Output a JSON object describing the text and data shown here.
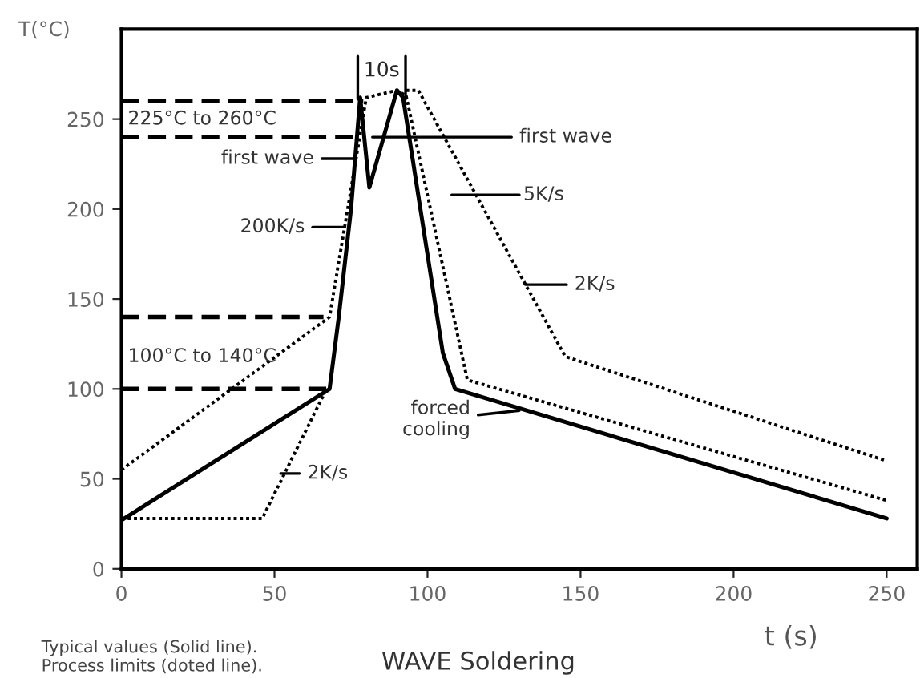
{
  "chart_data": {
    "type": "line",
    "title": "WAVE Soldering",
    "xlabel": "t (s)",
    "ylabel": "T(°C)",
    "xlim": [
      0,
      260
    ],
    "xticks": [
      0,
      50,
      100,
      150,
      200,
      250
    ],
    "ylim": [
      0,
      300
    ],
    "yticks": [
      0,
      50,
      100,
      150,
      200,
      250
    ],
    "grid": false,
    "marker": "none",
    "series": [
      {
        "color": "#000000",
        "line_style": "solid",
        "x": [
          0,
          68,
          71,
          75,
          78,
          81,
          90,
          92,
          105,
          109,
          250
        ],
        "values": [
          27,
          100,
          140,
          200,
          262,
          212,
          266,
          262,
          120,
          100,
          28
        ]
      },
      {
        "color": "#000000",
        "line_style": "dotted",
        "x": [
          0,
          46,
          67
        ],
        "values": [
          28,
          28,
          100
        ]
      },
      {
        "color": "#000000",
        "line_style": "dotted",
        "x": [
          0,
          68,
          80,
          90,
          93
        ],
        "values": [
          55,
          140,
          262,
          266,
          263
        ]
      },
      {
        "color": "#000000",
        "line_style": "dotted",
        "x": [
          93,
          113,
          250
        ],
        "values": [
          263,
          105,
          38
        ]
      },
      {
        "color": "#000000",
        "line_style": "dotted",
        "x": [
          93,
          97,
          145,
          250
        ],
        "values": [
          266,
          266,
          118,
          60
        ]
      },
      {
        "color": "#000000",
        "line_style": "dashed",
        "x": [
          0,
          79
        ],
        "values": [
          260,
          260
        ]
      },
      {
        "color": "#000000",
        "line_style": "dashed",
        "x": [
          0,
          78
        ],
        "values": [
          240,
          240
        ]
      },
      {
        "color": "#000000",
        "line_style": "dashed",
        "x": [
          0,
          66
        ],
        "values": [
          140,
          140
        ]
      },
      {
        "color": "#000000",
        "line_style": "dashed",
        "x": [
          0,
          68
        ],
        "values": [
          100,
          100
        ]
      }
    ],
    "annotations": [
      "10s",
      "225°C to 260°C",
      {
        "text": "first wave",
        "x": 76,
        "y": 228
      },
      {
        "text": "200K/s",
        "x": 73,
        "y": 190
      },
      "100°C to 140°C",
      {
        "text": "first wave",
        "x": 82,
        "y": 240
      },
      "5K/s",
      {
        "text": "2K/s",
        "x": 132,
        "y": 158
      },
      {
        "text": "forced\ncooling",
        "x": 130,
        "y": 88
      },
      {
        "text": "2K/s",
        "x": 52,
        "y": 53
      },
      "Typical values (Solid line).\nProcess limits (doted line)."
    ]
  }
}
